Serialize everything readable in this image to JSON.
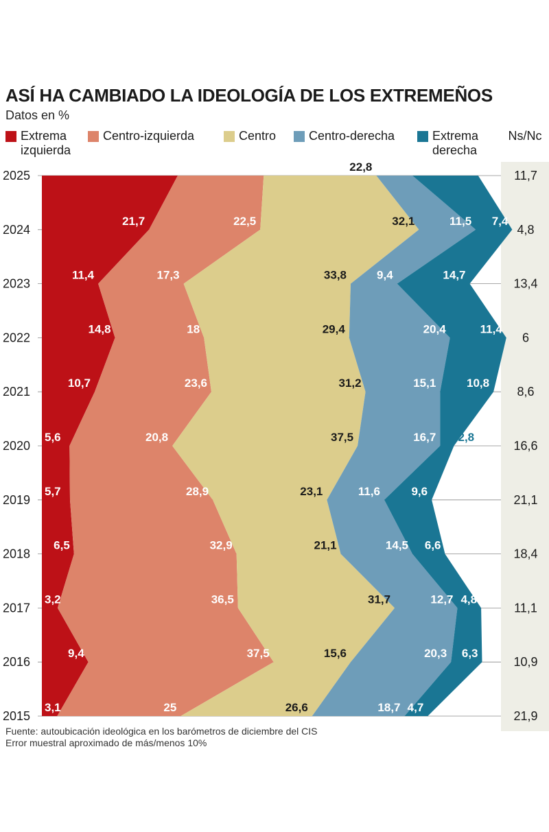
{
  "chart_data": {
    "type": "area",
    "title": "ASÍ HA CAMBIADO LA IDEOLOGÍA DE LOS EXTREMEÑOS",
    "subtitle": "Datos en %",
    "unit": "%",
    "orientation": "horizontal stacked, years top to bottom",
    "categories": [
      "2025",
      "2024",
      "2023",
      "2022",
      "2021",
      "2020",
      "2019",
      "2018",
      "2017",
      "2016",
      "2015"
    ],
    "series": [
      {
        "name": "Extrema izquierda",
        "color": "#bd1117",
        "label_color": "#ffffff",
        "values": [
          "27,5",
          "21,7",
          "11,4",
          "14,8",
          "10,7",
          "5,6",
          "5,7",
          "6,5",
          "3,2",
          "9,4",
          "3,1"
        ]
      },
      {
        "name": "Centro-izquierda",
        "color": "#dd846a",
        "label_color": "#ffffff",
        "values": [
          "17,4",
          "22,5",
          "17,3",
          "18",
          "23,6",
          "20,8",
          "28,9",
          "32,9",
          "36,5",
          "37,5",
          "25"
        ]
      },
      {
        "name": "Centro",
        "color": "#dccd8c",
        "label_color": "#1a1a1a",
        "values": [
          "22,8",
          "32,1",
          "33,8",
          "29,4",
          "31,2",
          "37,5",
          "23,1",
          "21,1",
          "31,7",
          "15,6",
          "26,6"
        ]
      },
      {
        "name": "Centro-derecha",
        "color": "#6e9db9",
        "label_color": "#ffffff",
        "values": [
          "7,3",
          "11,5",
          "9,4",
          "20,4",
          "15,1",
          "16,7",
          "11,6",
          "14,5",
          "12,7",
          "20,3",
          "18,7"
        ]
      },
      {
        "name": "Extrema derecha",
        "color": "#1a7694",
        "label_color": "#ffffff",
        "outside_label_color": "#1a7694",
        "values": [
          "13,3",
          "7,4",
          "14,7",
          "11,4",
          "10,8",
          "2,8",
          "9,6",
          "6,6",
          "4,8",
          "6,3",
          "4,7"
        ]
      }
    ],
    "ns_nc": {
      "label": "Ns/Nc",
      "values": [
        "11,7",
        "4,8",
        "13,4",
        "6",
        "8,6",
        "16,6",
        "21,1",
        "18,4",
        "11,1",
        "10,9",
        "21,9"
      ]
    },
    "legend": [
      {
        "label": "Extrema izquierda",
        "color": "#bd1117"
      },
      {
        "label": "Centro-izquierda",
        "color": "#dd846a"
      },
      {
        "label": "Centro",
        "color": "#dccd8c"
      },
      {
        "label": "Centro-derecha",
        "color": "#6e9db9"
      },
      {
        "label": "Extrema derecha",
        "color": "#1a7694"
      }
    ],
    "legend_placement": "top",
    "footnotes": [
      "Fuente: autoubicación ideológica en los barómetros de diciembre del CIS",
      "Error muestral aproximado de más/menos 10%"
    ]
  }
}
